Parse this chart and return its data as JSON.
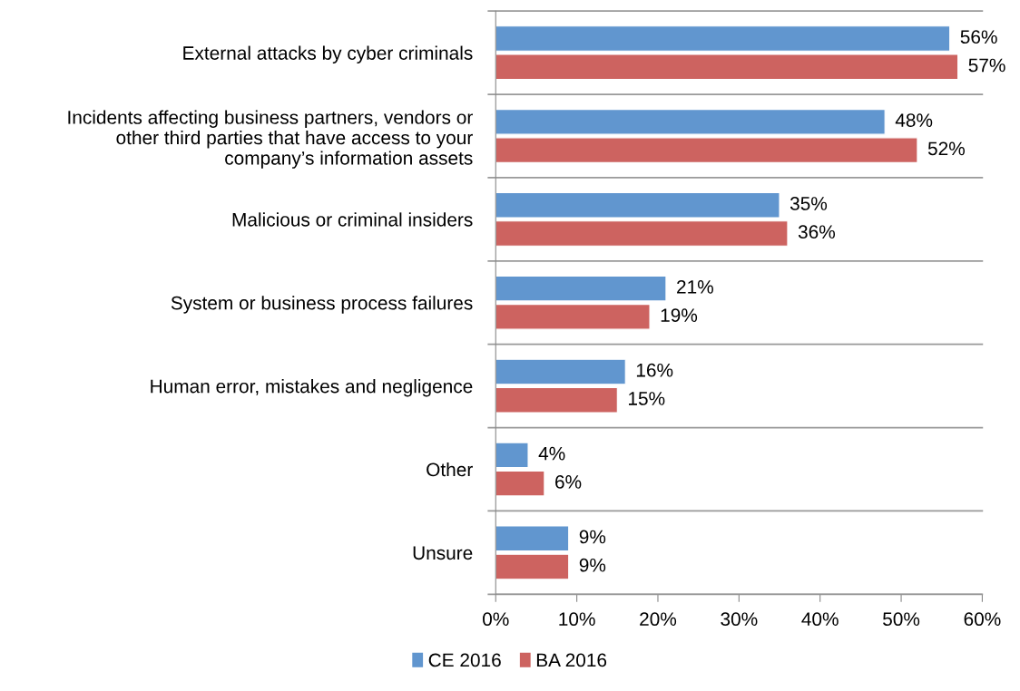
{
  "chart_data": {
    "type": "bar",
    "orientation": "horizontal",
    "categories": [
      "External attacks by cyber criminals",
      "Incidents affecting business partners, vendors or\nother third parties that have access to your\ncompany’s information assets",
      "Malicious or criminal insiders",
      "System or business process failures",
      "Human error, mistakes and negligence",
      "Other",
      "Unsure"
    ],
    "series": [
      {
        "name": "CE 2016",
        "color": "#6196cf",
        "values": [
          56,
          48,
          35,
          21,
          16,
          4,
          9
        ],
        "value_labels": [
          "56%",
          "48%",
          "35%",
          "21%",
          "16%",
          "4%",
          "9%"
        ]
      },
      {
        "name": "BA 2016",
        "color": "#cd6360",
        "values": [
          57,
          52,
          36,
          19,
          15,
          6,
          9
        ],
        "value_labels": [
          "57%",
          "52%",
          "36%",
          "19%",
          "15%",
          "6%",
          "9%"
        ]
      }
    ],
    "xlim": [
      0,
      60
    ],
    "xticks": [
      {
        "value": 0,
        "label": "0%"
      },
      {
        "value": 10,
        "label": "10%"
      },
      {
        "value": 20,
        "label": "20%"
      },
      {
        "value": 30,
        "label": "30%"
      },
      {
        "value": 40,
        "label": "40%"
      },
      {
        "value": 50,
        "label": "50%"
      },
      {
        "value": 60,
        "label": "60%"
      }
    ],
    "grid": "y",
    "legend": "bottom"
  }
}
